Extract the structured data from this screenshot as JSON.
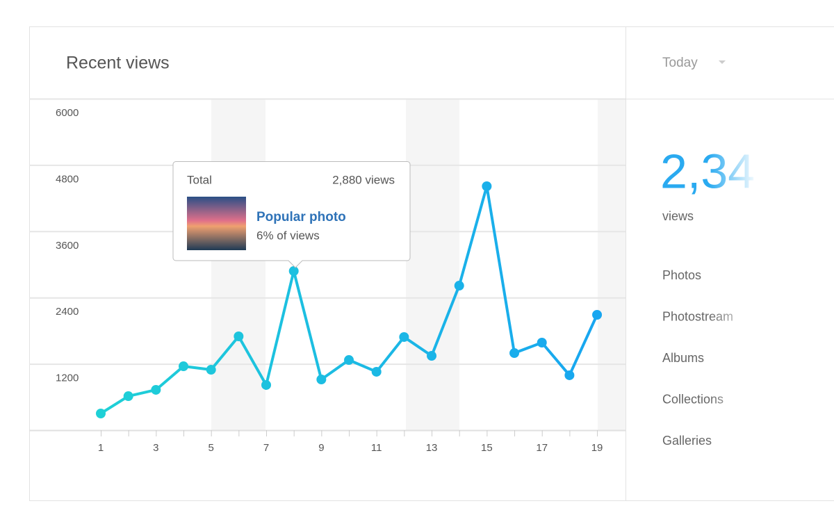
{
  "header": {
    "title": "Recent views"
  },
  "sidebar": {
    "period": "Today",
    "total": "2,34",
    "total_unit": "views",
    "items": [
      "Photos",
      "Photostream",
      "Albums",
      "Collections",
      "Galleries"
    ]
  },
  "tooltip": {
    "label": "Total",
    "value": "2,880 views",
    "title": "Popular photo",
    "share": "6% of views"
  },
  "chart_data": {
    "type": "line",
    "categories": [
      1,
      null,
      3,
      null,
      5,
      null,
      7,
      null,
      9,
      null,
      11,
      null,
      13,
      null,
      15,
      null,
      17,
      null,
      19
    ],
    "series": [
      {
        "name": null,
        "color": "#19b3e8",
        "values": [
          302,
          616,
          730,
          1157,
          1094,
          1698,
          818,
          2880,
          918,
          1270,
          1057,
          1686,
          1346,
          2616,
          4415,
          1396,
          1585,
          994,
          2088
        ]
      }
    ],
    "ylim": [
      0,
      6000
    ],
    "yticks": [
      1200,
      2400,
      3600,
      4800,
      6000
    ],
    "grid": true
  }
}
